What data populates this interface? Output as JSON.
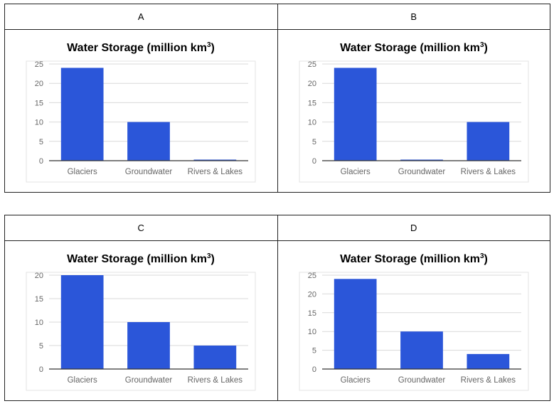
{
  "panels": [
    {
      "label": "A"
    },
    {
      "label": "B"
    },
    {
      "label": "C"
    },
    {
      "label": "D"
    }
  ],
  "chart_data": [
    {
      "type": "bar",
      "title": "Water Storage (million km",
      "title_sup": "3",
      "title_end": ")",
      "categories": [
        "Glaciers",
        "Groundwater",
        "Rivers & Lakes"
      ],
      "values": [
        24,
        10,
        0.2
      ],
      "ylim": [
        0,
        25
      ],
      "yticks": [
        0,
        5,
        10,
        15,
        20,
        25
      ],
      "grid": true,
      "color": "#2b56d9"
    },
    {
      "type": "bar",
      "title": "Water Storage (million km",
      "title_sup": "3",
      "title_end": ")",
      "categories": [
        "Glaciers",
        "Groundwater",
        "Rivers & Lakes"
      ],
      "values": [
        24,
        0.2,
        10
      ],
      "ylim": [
        0,
        25
      ],
      "yticks": [
        0,
        5,
        10,
        15,
        20,
        25
      ],
      "grid": true,
      "color": "#2b56d9"
    },
    {
      "type": "bar",
      "title": "Water Storage (million km",
      "title_sup": "3",
      "title_end": ")",
      "categories": [
        "Glaciers",
        "Groundwater",
        "Rivers & Lakes"
      ],
      "values": [
        20,
        10,
        5
      ],
      "ylim": [
        0,
        20
      ],
      "yticks": [
        0,
        5,
        10,
        15,
        20
      ],
      "grid": true,
      "color": "#2b56d9"
    },
    {
      "type": "bar",
      "title": "Water Storage (million km",
      "title_sup": "3",
      "title_end": ")",
      "categories": [
        "Glaciers",
        "Groundwater",
        "Rivers & Lakes"
      ],
      "values": [
        24,
        10,
        4
      ],
      "ylim": [
        0,
        25
      ],
      "yticks": [
        0,
        5,
        10,
        15,
        20,
        25
      ],
      "grid": true,
      "color": "#2b56d9"
    }
  ]
}
